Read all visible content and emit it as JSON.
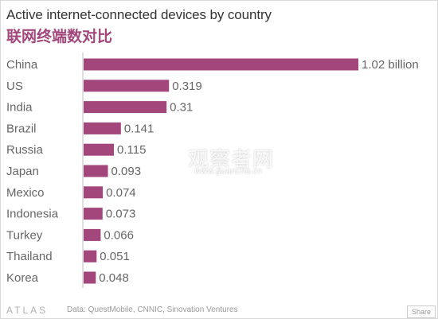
{
  "header": {
    "title": "Active internet-connected devices by country",
    "subtitle": "联网终端数对比"
  },
  "chart_data": {
    "type": "bar",
    "orientation": "horizontal",
    "title": "Active internet-connected devices by country",
    "subtitle": "联网终端数对比",
    "categories": [
      "China",
      "US",
      "India",
      "Brazil",
      "Russia",
      "Japan",
      "Mexico",
      "Indonesia",
      "Turkey",
      "Thailand",
      "Korea"
    ],
    "values": [
      1.02,
      0.319,
      0.31,
      0.141,
      0.115,
      0.093,
      0.074,
      0.073,
      0.066,
      0.051,
      0.048
    ],
    "value_labels": [
      "1.02 billion",
      "0.319",
      "0.31",
      "0.141",
      "0.115",
      "0.093",
      "0.074",
      "0.073",
      "0.066",
      "0.051",
      "0.048"
    ],
    "xlabel": "",
    "ylabel": "",
    "xlim": [
      0,
      1.02
    ],
    "grid": false,
    "bar_color": "#a2467c"
  },
  "watermark": {
    "text": "观察者网",
    "url": "www.guancha.cn"
  },
  "footer": {
    "logo": "ATLAS",
    "source": "Data: QuestMobile, CNNIC, Sinovation Ventures",
    "share_label": "Share"
  }
}
